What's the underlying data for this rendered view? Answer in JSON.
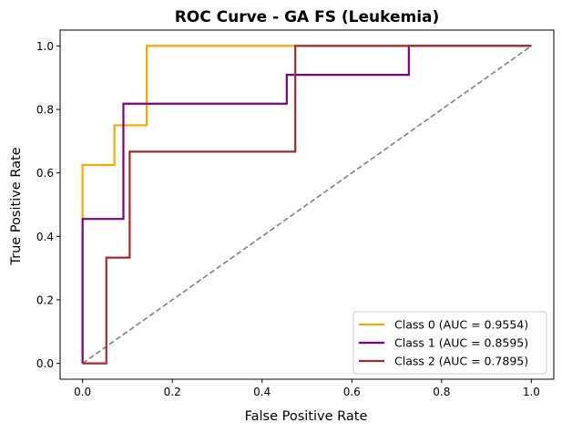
{
  "chart_data": {
    "type": "line",
    "title": "ROC Curve - GA FS (Leukemia)",
    "xlabel": "False Positive Rate",
    "ylabel": "True Positive Rate",
    "xlim": [
      -0.05,
      1.05
    ],
    "ylim": [
      -0.05,
      1.05
    ],
    "x_ticks": [
      0.0,
      0.2,
      0.4,
      0.6,
      0.8,
      1.0
    ],
    "x_tick_labels": [
      "0.0",
      "0.2",
      "0.4",
      "0.6",
      "0.8",
      "1.0"
    ],
    "y_ticks": [
      0.0,
      0.2,
      0.4,
      0.6,
      0.8,
      1.0
    ],
    "y_tick_labels": [
      "0.0",
      "0.2",
      "0.4",
      "0.6",
      "0.8",
      "1.0"
    ],
    "grid": false,
    "legend_position": "lower-right",
    "diagonal": {
      "x": [
        0,
        1
      ],
      "y": [
        0,
        1
      ],
      "color": "#808080",
      "style": "dashed"
    },
    "series": [
      {
        "name": "Class 0 (AUC = 0.9554)",
        "color": "#FFA500",
        "x": [
          0,
          0,
          0,
          0.071,
          0.071,
          0.143,
          0.143,
          1.0
        ],
        "y": [
          0,
          0.625,
          0.625,
          0.625,
          0.75,
          0.75,
          1.0,
          1.0
        ]
      },
      {
        "name": "Class 1 (AUC = 0.8595)",
        "color": "#800080",
        "x": [
          0,
          0,
          0.091,
          0.091,
          0.455,
          0.455,
          0.727,
          0.727,
          1.0
        ],
        "y": [
          0,
          0.455,
          0.455,
          0.818,
          0.818,
          0.909,
          0.909,
          1.0,
          1.0
        ]
      },
      {
        "name": "Class 2 (AUC = 0.7895)",
        "color": "#A52A2A",
        "x": [
          0,
          0.053,
          0.053,
          0.105,
          0.105,
          0.474,
          0.474,
          1.0
        ],
        "y": [
          0,
          0,
          0.333,
          0.333,
          0.667,
          0.667,
          1.0,
          1.0
        ]
      }
    ]
  }
}
